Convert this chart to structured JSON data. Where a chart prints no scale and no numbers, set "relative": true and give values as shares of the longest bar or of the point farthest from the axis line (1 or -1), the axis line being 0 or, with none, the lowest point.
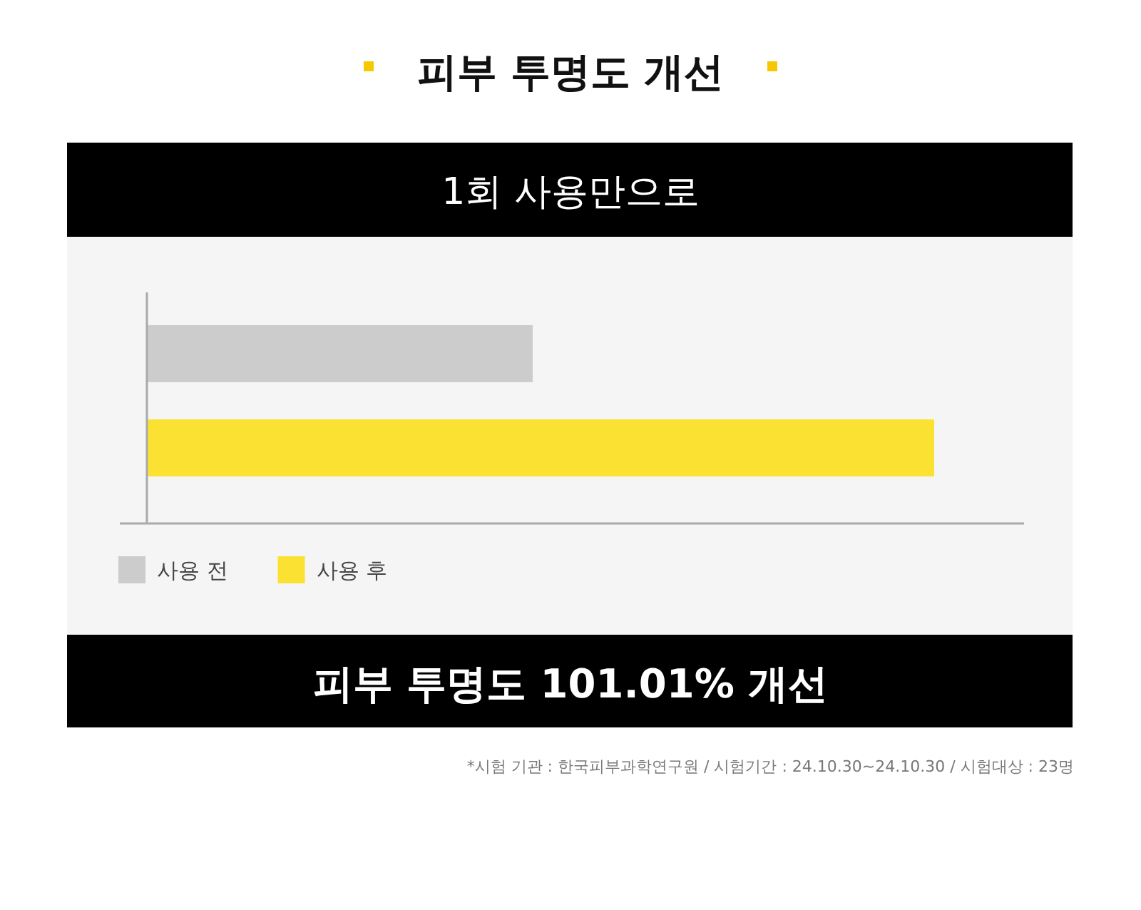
{
  "chart_data": {
    "type": "bar",
    "orientation": "horizontal",
    "relative": true,
    "legend": "bottom left",
    "title": "피부 투명도 개선",
    "subtitle": "1회 사용만으로",
    "annotations": [
      "피부 투명도 101.01% 개선",
      "*시험 기관 : 한국피부과학연구원 / 시험기간 : 24.10.30~24.10.30 / 시험대상 : 23명"
    ],
    "categories": [
      null
    ],
    "series": [
      {
        "name": "사용 전",
        "color": "#cccccc",
        "values": [
          0.49
        ]
      },
      {
        "name": "사용 후",
        "color": "#fbe232",
        "values": [
          1
        ]
      }
    ]
  }
}
